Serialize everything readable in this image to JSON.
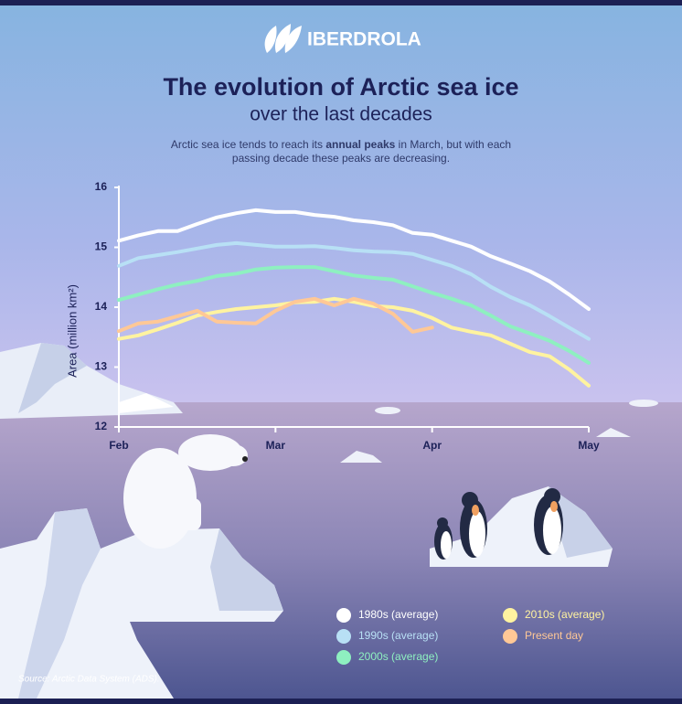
{
  "brand": "IBERDROLA",
  "chart_data": {
    "type": "line",
    "title": "The evolution of Arctic sea ice",
    "subtitle": "over the last decades",
    "description": {
      "before": "Arctic sea ice tends to reach its ",
      "bold": "annual peaks",
      "after": " in March, but with each",
      "line2": "passing decade these peaks are decreasing."
    },
    "y_label": "Area (million km²)",
    "categories": [
      "Feb",
      null,
      null,
      null,
      null,
      null,
      null,
      null,
      "Mar",
      null,
      null,
      null,
      null,
      null,
      null,
      null,
      "Apr",
      null,
      null,
      null,
      null,
      null,
      null,
      null,
      "May"
    ],
    "ylim": [
      12,
      16
    ],
    "yticks": [
      12,
      13,
      14,
      15,
      16
    ],
    "series": [
      {
        "name": "1980s (average)",
        "color": "#ffffff",
        "values": [
          15.11,
          15.2,
          15.27,
          15.27,
          15.39,
          15.5,
          15.57,
          15.62,
          15.59,
          15.59,
          15.54,
          15.51,
          15.45,
          15.42,
          15.37,
          15.24,
          15.21,
          15.11,
          15.01,
          14.85,
          14.73,
          14.6,
          14.43,
          14.21,
          13.97
        ]
      },
      {
        "name": "1990s (average)",
        "color": "#b8e0f5",
        "values": [
          14.69,
          14.82,
          14.87,
          14.92,
          14.98,
          15.04,
          15.07,
          15.04,
          15.01,
          15.01,
          15.02,
          14.99,
          14.95,
          14.93,
          14.92,
          14.89,
          14.79,
          14.69,
          14.55,
          14.34,
          14.17,
          14.03,
          13.85,
          13.66,
          13.47
        ]
      },
      {
        "name": "2000s (average)",
        "color": "#8ef0c0",
        "values": [
          14.12,
          14.21,
          14.3,
          14.38,
          14.44,
          14.52,
          14.56,
          14.63,
          14.66,
          14.67,
          14.67,
          14.6,
          14.53,
          14.49,
          14.46,
          14.35,
          14.24,
          14.14,
          14.03,
          13.86,
          13.68,
          13.56,
          13.44,
          13.27,
          13.07
        ]
      },
      {
        "name": "2010s (average)",
        "color": "#fff3a0",
        "values": [
          13.47,
          13.53,
          13.63,
          13.74,
          13.86,
          13.92,
          13.97,
          14.0,
          14.03,
          14.08,
          14.09,
          14.14,
          14.09,
          14.02,
          14.0,
          13.94,
          13.82,
          13.66,
          13.59,
          13.53,
          13.39,
          13.25,
          13.18,
          12.96,
          12.69
        ]
      },
      {
        "name": "Present day",
        "color": "#ffc896",
        "values": [
          13.6,
          13.73,
          13.76,
          13.85,
          13.94,
          13.76,
          13.74,
          13.73,
          13.94,
          14.09,
          14.14,
          14.03,
          14.14,
          14.06,
          13.89,
          13.59,
          13.66,
          null,
          null,
          null,
          null,
          null,
          null,
          null,
          null
        ]
      }
    ]
  },
  "source": "Source: Arctic Data System (ADS)."
}
